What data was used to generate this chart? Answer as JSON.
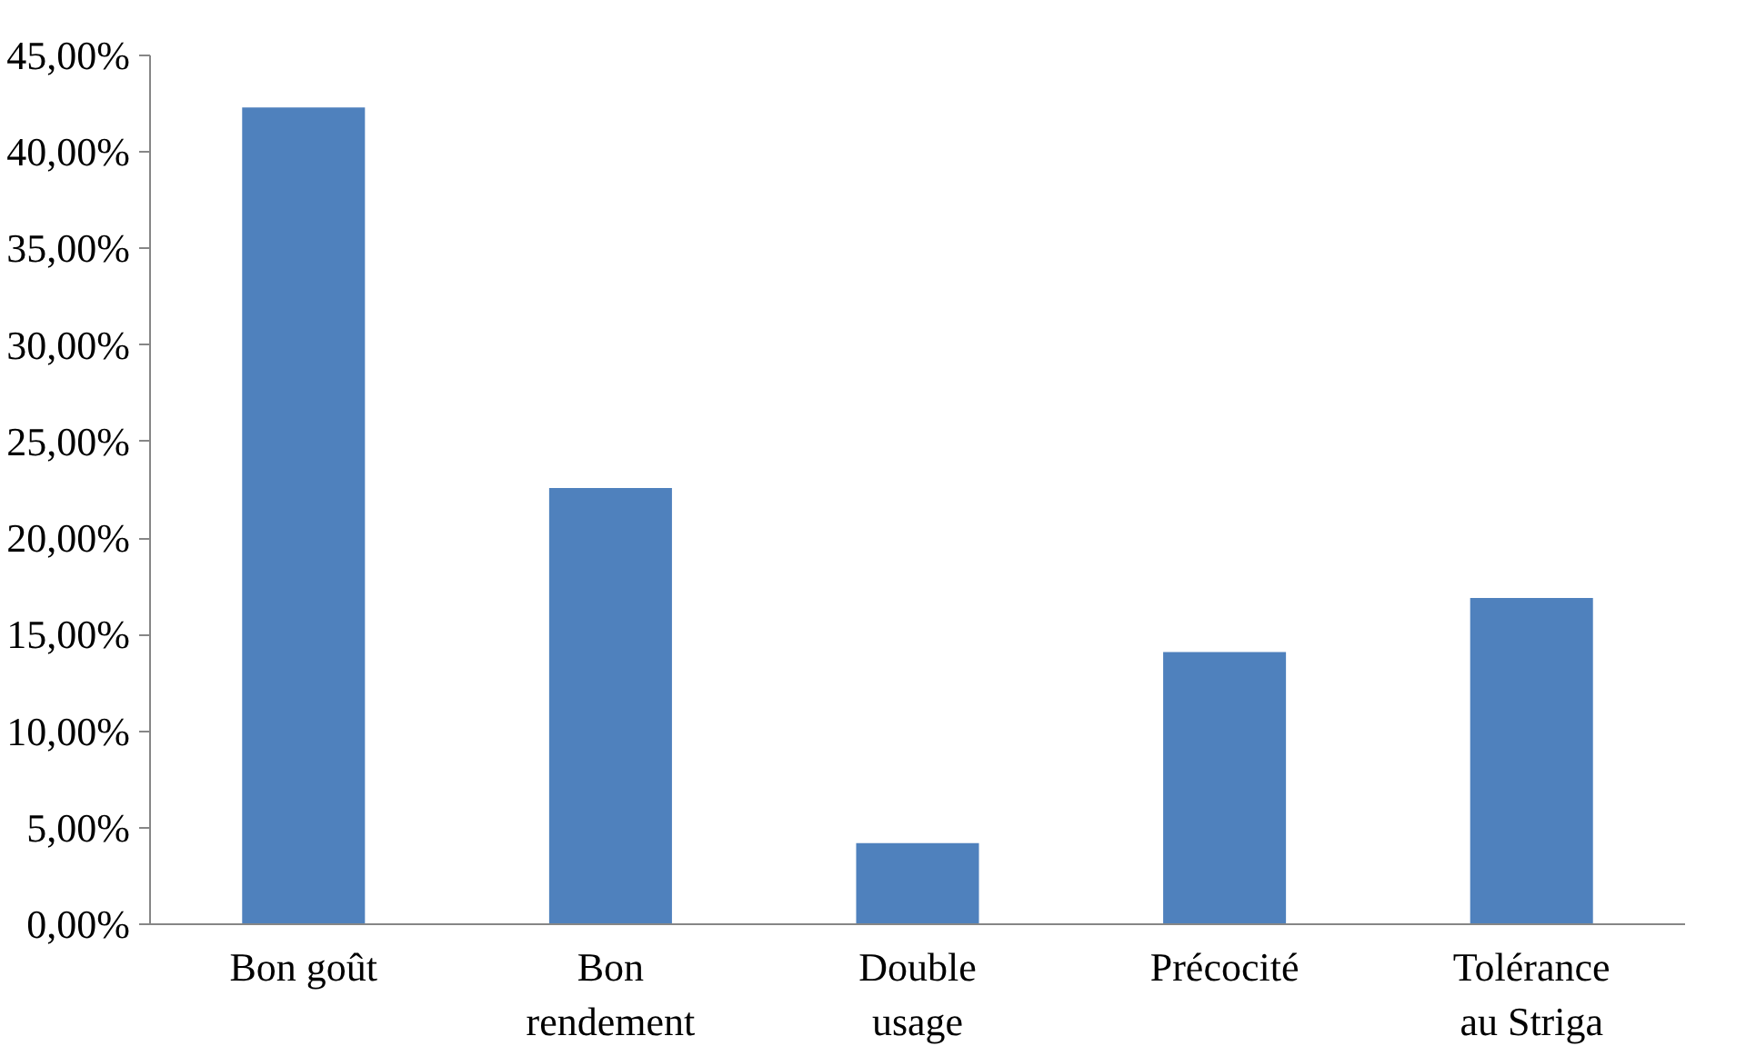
{
  "chart_data": {
    "type": "bar",
    "categories": [
      "Bon goût",
      "Bon\nrendement",
      "Double\nusage",
      "Précocité",
      "Tolérance\nau Striga"
    ],
    "values": [
      42.3,
      22.6,
      4.2,
      14.1,
      16.9
    ],
    "color": "#4f81bd",
    "ylim": [
      0,
      45
    ],
    "yticks": [
      {
        "value": 0,
        "label": "0,00%"
      },
      {
        "value": 5,
        "label": "5,00%"
      },
      {
        "value": 10,
        "label": "10,00%"
      },
      {
        "value": 15,
        "label": "15,00%"
      },
      {
        "value": 20,
        "label": "20,00%"
      },
      {
        "value": 25,
        "label": "25,00%"
      },
      {
        "value": 30,
        "label": "30,00%"
      },
      {
        "value": 35,
        "label": "35,00%"
      },
      {
        "value": 40,
        "label": "40,00%"
      },
      {
        "value": 45,
        "label": "45,00%"
      }
    ],
    "grid": false
  }
}
